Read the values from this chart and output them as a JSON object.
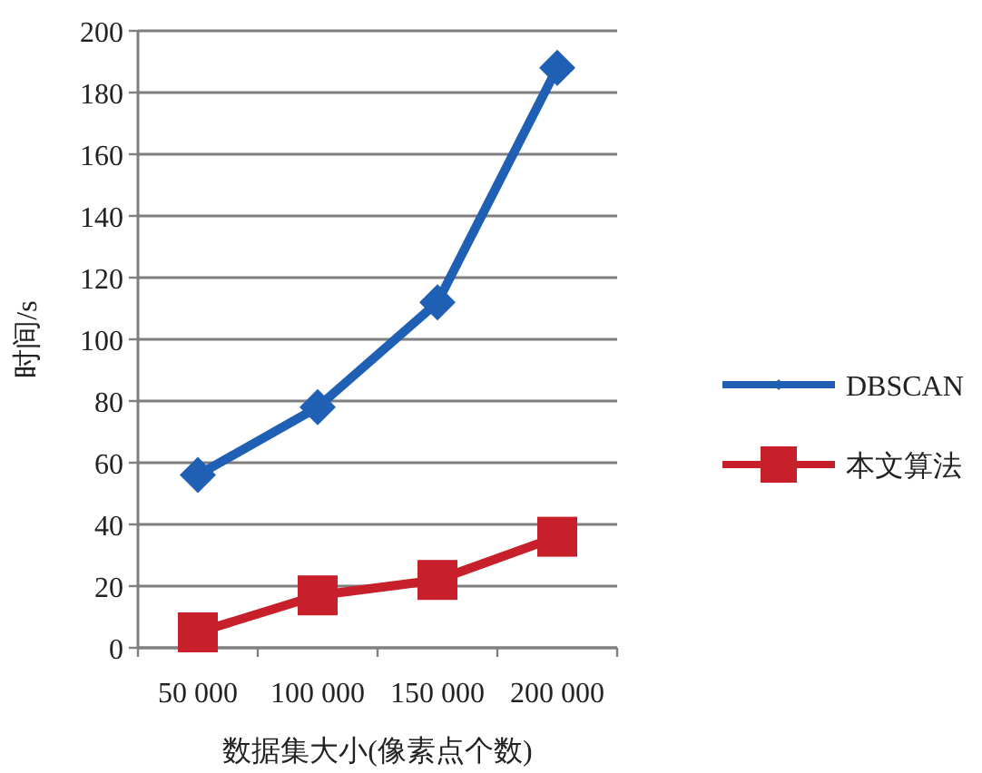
{
  "chart_data": {
    "type": "line",
    "xlabel": "数据集大小(像素点个数)",
    "ylabel": "时间/s",
    "categories": [
      "50 000",
      "100 000",
      "150 000",
      "200 000"
    ],
    "series": [
      {
        "name": "DBSCAN",
        "color": "#1f5fb4",
        "marker": "diamond",
        "values": [
          56,
          78,
          112,
          188
        ]
      },
      {
        "name": "本文算法",
        "color": "#c8202a",
        "marker": "square",
        "values": [
          5,
          17,
          22,
          36
        ]
      }
    ],
    "ylim": [
      0,
      200
    ],
    "yticks": [
      0,
      20,
      40,
      60,
      80,
      100,
      120,
      140,
      160,
      180,
      200
    ],
    "grid": "y",
    "legend": "right"
  }
}
